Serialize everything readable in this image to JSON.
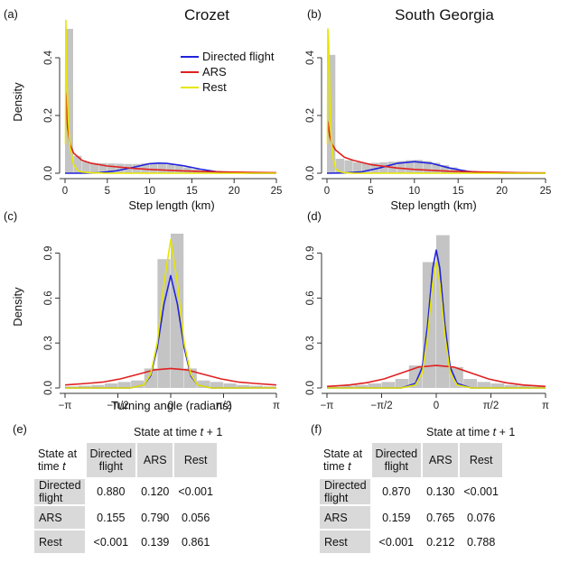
{
  "panels": [
    {
      "letter": "(a)",
      "title": "Crozet",
      "kind": "step",
      "xlabel": "Step length (km)",
      "ylabel": "Density",
      "xticks": [
        "0",
        "5",
        "10",
        "15",
        "20",
        "25"
      ],
      "yticks": [
        "0.0",
        "0.2",
        "0.4"
      ],
      "xlim": [
        0,
        25
      ],
      "ylim": [
        0,
        0.5
      ],
      "hist": {
        "bin_width": 1,
        "values": [
          0.5,
          0.06,
          0.04,
          0.035,
          0.035,
          0.034,
          0.033,
          0.032,
          0.032,
          0.034,
          0.034,
          0.032,
          0.03,
          0.026,
          0.02,
          0.014,
          0.009,
          0.005,
          0.003,
          0.002,
          0.001,
          0.001,
          0,
          0,
          0
        ]
      }
    },
    {
      "letter": "(b)",
      "title": "South Georgia",
      "kind": "step",
      "xlabel": "Step length (km)",
      "ylabel": "",
      "xticks": [
        "0",
        "5",
        "10",
        "15",
        "20",
        "25"
      ],
      "yticks": [
        "0.0",
        "0.2",
        "0.4"
      ],
      "xlim": [
        0,
        25
      ],
      "ylim": [
        0,
        0.5
      ],
      "hist": {
        "bin_width": 1,
        "values": [
          0.41,
          0.05,
          0.045,
          0.038,
          0.035,
          0.036,
          0.038,
          0.04,
          0.042,
          0.045,
          0.046,
          0.042,
          0.036,
          0.028,
          0.02,
          0.012,
          0.007,
          0.004,
          0.002,
          0.001,
          0.001,
          0,
          0,
          0,
          0
        ]
      }
    },
    {
      "letter": "(c)",
      "title": "",
      "kind": "angle",
      "xlabel": "Turning angle (radians)",
      "ylabel": "Density",
      "xticks": [
        "−π",
        "−π/2",
        "0",
        "π/2",
        "π"
      ],
      "yticks": [
        "0.0",
        "0.3",
        "0.6",
        "0.9"
      ],
      "xlim": [
        -3.1416,
        3.1416
      ],
      "ylim": [
        0,
        1.06
      ],
      "hist": {
        "bin_width": 0.3927,
        "values": [
          0.01,
          0.015,
          0.02,
          0.03,
          0.04,
          0.05,
          0.13,
          0.86,
          1.03,
          0.13,
          0.05,
          0.04,
          0.03,
          0.02,
          0.015,
          0.01
        ]
      }
    },
    {
      "letter": "(d)",
      "title": "",
      "kind": "angle",
      "xlabel": "",
      "ylabel": "",
      "xticks": [
        "−π",
        "−π/2",
        "0",
        "π/2",
        "π"
      ],
      "yticks": [
        "0.0",
        "0.3",
        "0.6",
        "0.9"
      ],
      "xlim": [
        -3.1416,
        3.1416
      ],
      "ylim": [
        0,
        1.06
      ],
      "hist": {
        "bin_width": 0.3927,
        "values": [
          0.01,
          0.015,
          0.02,
          0.03,
          0.04,
          0.06,
          0.15,
          0.84,
          1.02,
          0.14,
          0.06,
          0.04,
          0.03,
          0.02,
          0.015,
          0.01
        ]
      }
    }
  ],
  "legend": {
    "items": [
      {
        "label": "Directed flight",
        "color": "#2222dd"
      },
      {
        "label": "ARS",
        "color": "#e02020"
      },
      {
        "label": "Rest",
        "color": "#e6e600"
      }
    ]
  },
  "tables": [
    {
      "letter": "(e)",
      "title_prefix": "State at time ",
      "title_var": "t",
      "title_suffix": " + 1",
      "corner_prefix": "State at time ",
      "corner_var": "t",
      "columns": [
        "Directed flight",
        "ARS",
        "Rest"
      ],
      "rows": [
        {
          "label": "Directed flight",
          "values": [
            "0.880",
            "0.120",
            "<0.001"
          ]
        },
        {
          "label": "ARS",
          "values": [
            "0.155",
            "0.790",
            "0.056"
          ]
        },
        {
          "label": "Rest",
          "values": [
            "<0.001",
            "0.139",
            "0.861"
          ]
        }
      ]
    },
    {
      "letter": "(f)",
      "title_prefix": "State at time ",
      "title_var": "t",
      "title_suffix": " + 1",
      "corner_prefix": "State at time ",
      "corner_var": "t",
      "columns": [
        "Directed flight",
        "ARS",
        "Rest"
      ],
      "rows": [
        {
          "label": "Directed flight",
          "values": [
            "0.870",
            "0.130",
            "<0.001"
          ]
        },
        {
          "label": "ARS",
          "values": [
            "0.159",
            "0.765",
            "0.076"
          ]
        },
        {
          "label": "Rest",
          "values": [
            "<0.001",
            "0.212",
            "0.788"
          ]
        }
      ]
    }
  ],
  "chart_data": [
    {
      "type": "line",
      "panel": "(a) Crozet",
      "xlabel": "Step length (km)",
      "ylabel": "Density",
      "xlim": [
        0,
        25
      ],
      "ylim": [
        0,
        0.5
      ],
      "series": [
        {
          "name": "Directed flight",
          "color": "#2222dd",
          "x": [
            0,
            2,
            4,
            6,
            8,
            10,
            11,
            12,
            14,
            16,
            18,
            20,
            22,
            25
          ],
          "y": [
            0.0,
            0.0,
            0.002,
            0.008,
            0.02,
            0.033,
            0.035,
            0.034,
            0.026,
            0.014,
            0.005,
            0.002,
            0.0,
            0.0
          ]
        },
        {
          "name": "ARS",
          "color": "#e02020",
          "x": [
            0.1,
            0.3,
            0.6,
            1,
            2,
            3,
            5,
            8,
            10,
            14,
            18,
            22,
            25
          ],
          "y": [
            0.28,
            0.16,
            0.1,
            0.07,
            0.045,
            0.035,
            0.025,
            0.017,
            0.013,
            0.008,
            0.005,
            0.003,
            0.002
          ]
        },
        {
          "name": "Rest",
          "color": "#e6e600",
          "x": [
            0.05,
            0.1,
            0.2,
            0.4,
            0.6,
            1,
            1.5,
            2,
            3,
            5,
            10,
            25
          ],
          "y": [
            0.1,
            0.53,
            0.35,
            0.18,
            0.09,
            0.03,
            0.01,
            0.004,
            0.002,
            0.0,
            0.0,
            0.0
          ]
        }
      ]
    },
    {
      "type": "line",
      "panel": "(b) South Georgia",
      "xlabel": "Step length (km)",
      "xlim": [
        0,
        25
      ],
      "ylim": [
        0,
        0.5
      ],
      "series": [
        {
          "name": "Directed flight",
          "color": "#2222dd",
          "x": [
            0,
            2,
            4,
            6,
            8,
            10,
            12,
            14,
            16,
            18,
            20,
            25
          ],
          "y": [
            0.0,
            0.001,
            0.005,
            0.018,
            0.034,
            0.04,
            0.034,
            0.018,
            0.007,
            0.002,
            0.0,
            0.0
          ]
        },
        {
          "name": "ARS",
          "color": "#e02020",
          "x": [
            0.1,
            0.3,
            0.6,
            1,
            2,
            3,
            5,
            8,
            10,
            14,
            18,
            22,
            25
          ],
          "y": [
            0.18,
            0.13,
            0.1,
            0.08,
            0.055,
            0.045,
            0.03,
            0.018,
            0.013,
            0.007,
            0.004,
            0.002,
            0.001
          ]
        },
        {
          "name": "Rest",
          "color": "#e6e600",
          "x": [
            0.05,
            0.1,
            0.2,
            0.35,
            0.5,
            0.7,
            1,
            1.5,
            2,
            3,
            10,
            25
          ],
          "y": [
            0.1,
            0.5,
            0.45,
            0.25,
            0.12,
            0.05,
            0.015,
            0.005,
            0.002,
            0.0,
            0.0,
            0.0
          ]
        }
      ]
    },
    {
      "type": "line",
      "panel": "(c)",
      "xlabel": "Turning angle (radians)",
      "ylabel": "Density",
      "xlim": [
        -3.1416,
        3.1416
      ],
      "ylim": [
        0,
        1.06
      ],
      "series": [
        {
          "name": "Directed flight",
          "color": "#2222dd",
          "x": [
            -3.14,
            -1.2,
            -0.8,
            -0.6,
            -0.4,
            -0.2,
            0,
            0.2,
            0.4,
            0.6,
            0.8,
            1.2,
            3.14
          ],
          "y": [
            0.0,
            0.0,
            0.02,
            0.08,
            0.27,
            0.56,
            0.75,
            0.56,
            0.27,
            0.08,
            0.02,
            0.0,
            0.0
          ]
        },
        {
          "name": "ARS",
          "color": "#e02020",
          "x": [
            -3.14,
            -2.5,
            -2,
            -1.5,
            -1,
            -0.5,
            0,
            0.5,
            1,
            1.5,
            2,
            2.5,
            3.14
          ],
          "y": [
            0.02,
            0.03,
            0.04,
            0.06,
            0.09,
            0.12,
            0.13,
            0.12,
            0.09,
            0.06,
            0.04,
            0.03,
            0.02
          ]
        },
        {
          "name": "Rest",
          "color": "#e6e600",
          "x": [
            -3.14,
            -1.2,
            -0.8,
            -0.6,
            -0.4,
            -0.2,
            0,
            0.2,
            0.4,
            0.6,
            0.8,
            1.2,
            3.14
          ],
          "y": [
            0.0,
            0.0,
            0.02,
            0.09,
            0.3,
            0.7,
            0.99,
            0.7,
            0.3,
            0.09,
            0.02,
            0.0,
            0.0
          ]
        }
      ]
    },
    {
      "type": "line",
      "panel": "(d)",
      "xlim": [
        -3.1416,
        3.1416
      ],
      "ylim": [
        0,
        1.06
      ],
      "series": [
        {
          "name": "Directed flight",
          "color": "#2222dd",
          "x": [
            -3.14,
            -1,
            -0.6,
            -0.4,
            -0.25,
            -0.1,
            0,
            0.1,
            0.25,
            0.4,
            0.6,
            1,
            3.14
          ],
          "y": [
            0.0,
            0.0,
            0.03,
            0.14,
            0.42,
            0.8,
            0.92,
            0.8,
            0.42,
            0.14,
            0.03,
            0.0,
            0.0
          ]
        },
        {
          "name": "ARS",
          "color": "#e02020",
          "x": [
            -3.14,
            -2.5,
            -2,
            -1.5,
            -1,
            -0.5,
            0,
            0.5,
            1,
            1.5,
            2,
            2.5,
            3.14
          ],
          "y": [
            0.01,
            0.02,
            0.035,
            0.06,
            0.1,
            0.14,
            0.15,
            0.14,
            0.1,
            0.06,
            0.035,
            0.02,
            0.01
          ]
        },
        {
          "name": "Rest",
          "color": "#e6e600",
          "x": [
            -3.14,
            -1,
            -0.6,
            -0.4,
            -0.25,
            -0.1,
            0,
            0.1,
            0.25,
            0.4,
            0.6,
            1,
            3.14
          ],
          "y": [
            0.0,
            0.0,
            0.02,
            0.1,
            0.35,
            0.7,
            0.84,
            0.7,
            0.35,
            0.1,
            0.02,
            0.0,
            0.0
          ]
        }
      ]
    }
  ]
}
